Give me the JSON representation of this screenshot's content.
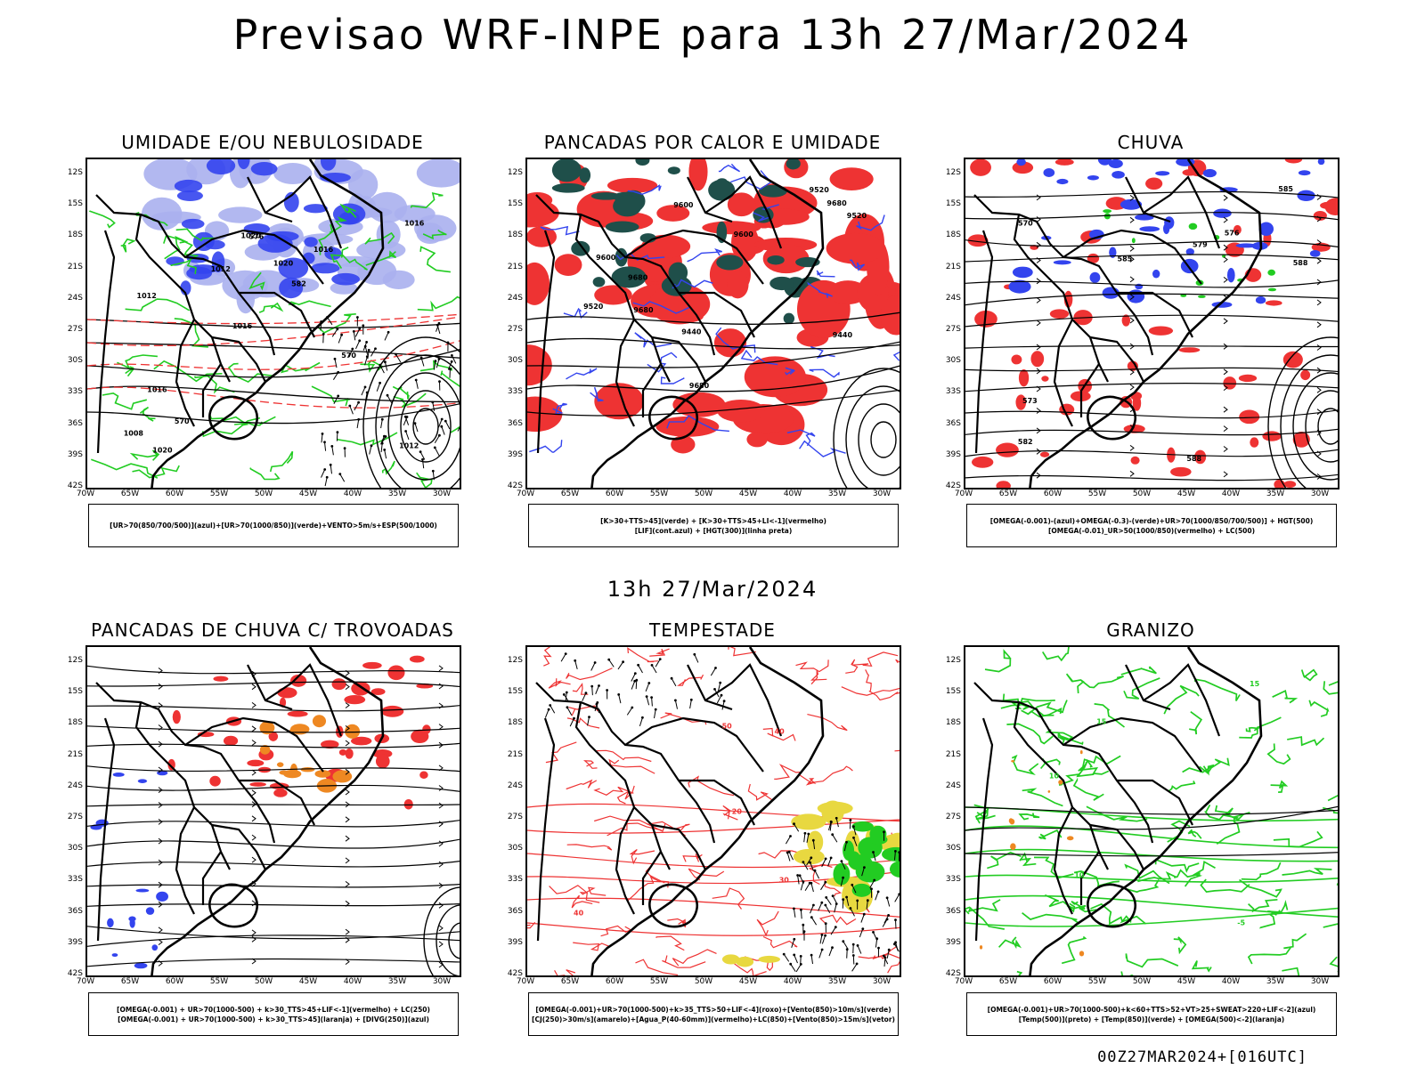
{
  "title": "Previsao WRF-INPE  para 13h 27/Mar/2024",
  "mid_date": "13h 27/Mar/2024",
  "footer": "00Z27MAR2024+[016UTC]",
  "lat_labels": [
    "12S",
    "15S",
    "18S",
    "21S",
    "24S",
    "27S",
    "30S",
    "33S",
    "36S",
    "39S",
    "42S"
  ],
  "lon_labels": [
    "70W",
    "65W",
    "60W",
    "55W",
    "50W",
    "45W",
    "40W",
    "35W",
    "30W"
  ],
  "panels": [
    {
      "title": "UMIDADE E/OU NEBULOSIDADE",
      "legend": [
        "[UR>70(850/700/500)](azul)+[UR>70(1000/850)](verde)+VENTO>5m/s+ESP(500/1000)"
      ],
      "contour_labels": [
        "1012",
        "1012",
        "1016",
        "1016",
        "1016",
        "1020",
        "1020",
        "1020",
        "1016",
        "1012",
        "1008",
        "570",
        "576",
        "582",
        "570"
      ]
    },
    {
      "title": "PANCADAS POR CALOR E UMIDADE",
      "legend": [
        "[K>30+TTS>45](verde) + [K>30+TTS>45+LI<-1](vermelho)",
        "[LIF](cont.azul) + [HGT(300)](linha preta)"
      ],
      "contour_labels": [
        "9680",
        "9680",
        "9680",
        "9600",
        "9680",
        "9600",
        "9600",
        "9520",
        "9520",
        "9440",
        "9440",
        "9520"
      ]
    },
    {
      "title": "CHUVA",
      "legend": [
        "[OMEGA(-0.001)-(azul)+OMEGA(-0.3)-(verde)+UR>70(1000/850/700/500)] + HGT(500)",
        "[OMEGA(-0.01)_UR>50(1000/850)(vermelho) + LC(500)"
      ],
      "contour_labels": [
        "588",
        "585",
        "588",
        "585",
        "582",
        "579",
        "576",
        "573",
        "570"
      ]
    },
    {
      "title": "PANCADAS DE CHUVA C/ TROVOADAS",
      "legend": [
        "[OMEGA(-0.001) + UR>70(1000-500) + k>30_TTS>45+LIF<-1](vermelho) + LC(250)",
        "[OMEGA(-0.001) + UR>70(1000-500) + k>30_TTS>45](laranja) + [DIVG(250)](azul)"
      ],
      "contour_labels": []
    },
    {
      "title": "TEMPESTADE",
      "legend": [
        "[OMEGA(-0.001)+UR>70(1000-500)+k>35_TTS>50+LIF<-4](roxo)+[Vento(850)>10m/s](verde)",
        "[CJ(250)>30m/s](amarelo)+[Agua_P(40-60mm)](vermelho)+LC(850)+[Vento(850)>15m/s](vetor)"
      ],
      "contour_labels": [
        "50",
        "40",
        "30",
        "40",
        "20"
      ]
    },
    {
      "title": "GRANIZO",
      "legend": [
        "[OMEGA(-0.001)+UR>70(1000-500)+k<60+TTS>52+VT>25+SWEAT>220+LIF<-2](azul)",
        "[Temp(500)](preto) + [Temp(850)](verde) + [OMEGA(500)<-2](laranja)"
      ],
      "contour_labels": [
        "15",
        "10",
        "15",
        "-5",
        "10"
      ]
    }
  ],
  "colors": {
    "blue": "#3344ee",
    "lightblue": "#aab0ee",
    "green": "#22cc22",
    "red": "#ee3333",
    "darkteal": "#1f4f4a",
    "orange": "#ee8822",
    "yellow": "#e8d840"
  }
}
